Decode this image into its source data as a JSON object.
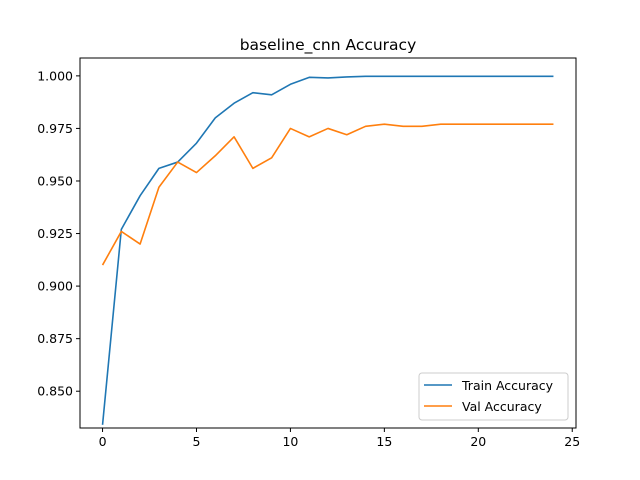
{
  "chart_data": {
    "type": "line",
    "title": "baseline_cnn Accuracy",
    "xlabel": "",
    "ylabel": "",
    "xlim": [
      -1.2,
      25.2
    ],
    "ylim": [
      0.8325,
      1.0085
    ],
    "x_ticks": [
      0,
      5,
      10,
      15,
      20,
      25
    ],
    "y_ticks": [
      0.85,
      0.875,
      0.9,
      0.925,
      0.95,
      0.975,
      1.0
    ],
    "grid": false,
    "legend_position": "lower-right",
    "x": [
      0,
      1,
      2,
      3,
      4,
      5,
      6,
      7,
      8,
      9,
      10,
      11,
      12,
      13,
      14,
      15,
      16,
      17,
      18,
      19,
      20,
      21,
      22,
      23,
      24
    ],
    "series": [
      {
        "name": "Train Accuracy",
        "color": "#1f77b4",
        "values": [
          0.834,
          0.927,
          0.943,
          0.956,
          0.959,
          0.968,
          0.98,
          0.987,
          0.992,
          0.991,
          0.996,
          0.9993,
          0.999,
          0.9995,
          0.9998,
          0.9998,
          0.9998,
          0.9998,
          0.9998,
          0.9998,
          0.9998,
          0.9998,
          0.9998,
          0.9998,
          0.9998
        ]
      },
      {
        "name": "Val Accuracy",
        "color": "#ff7f0e",
        "values": [
          0.91,
          0.926,
          0.92,
          0.947,
          0.959,
          0.954,
          0.962,
          0.971,
          0.956,
          0.961,
          0.975,
          0.971,
          0.975,
          0.972,
          0.976,
          0.977,
          0.976,
          0.976,
          0.977,
          0.977,
          0.977,
          0.977,
          0.977,
          0.977,
          0.977
        ]
      }
    ]
  }
}
